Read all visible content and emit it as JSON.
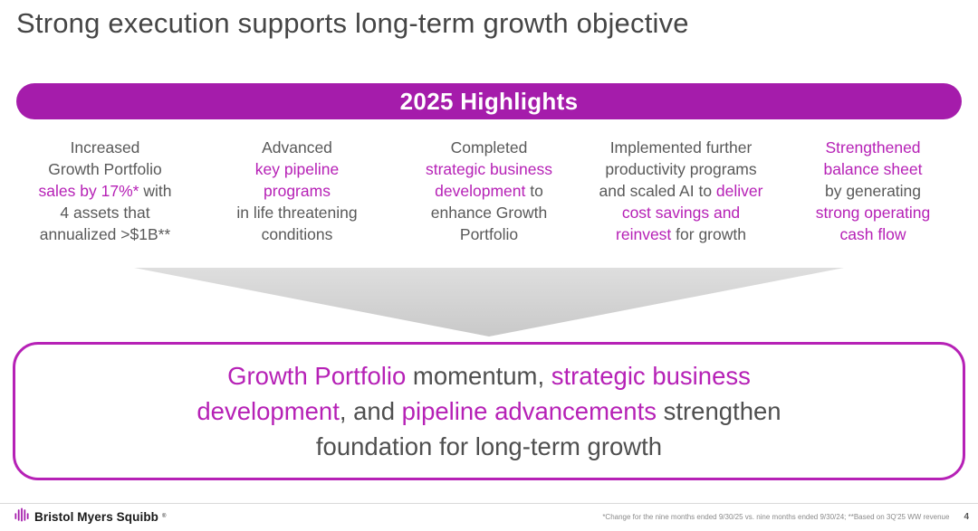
{
  "colors": {
    "accent": "#B621B6",
    "banner": "#A51CAB",
    "title_gray": "#454545",
    "body_gray": "#595959",
    "arrow_gray": "#D4D4D4"
  },
  "title": "Strong execution supports long-term growth objective",
  "banner": {
    "label": "2025 Highlights"
  },
  "highlights": [
    {
      "segments": [
        {
          "t": "Increased\nGrowth Portfolio\n"
        },
        {
          "t": "sales by 17%*",
          "accent": true
        },
        {
          "t": " with\n4 assets that\nannualized >$1B**"
        }
      ]
    },
    {
      "segments": [
        {
          "t": "Advanced\n"
        },
        {
          "t": "key pipeline\nprograms",
          "accent": true
        },
        {
          "t": "\nin life threatening\nconditions"
        }
      ]
    },
    {
      "segments": [
        {
          "t": "Completed\n"
        },
        {
          "t": "strategic business\ndevelopment",
          "accent": true
        },
        {
          "t": " to\nenhance Growth\nPortfolio"
        }
      ]
    },
    {
      "segments": [
        {
          "t": "Implemented further\nproductivity programs\nand scaled AI to "
        },
        {
          "t": "deliver\ncost savings and\nreinvest",
          "accent": true
        },
        {
          "t": " for growth"
        }
      ]
    },
    {
      "segments": [
        {
          "t": "Strengthened\nbalance sheet",
          "accent": true
        },
        {
          "t": "\nby generating\n"
        },
        {
          "t": "strong operating\ncash flow",
          "accent": true
        }
      ]
    }
  ],
  "summary": {
    "segments": [
      {
        "t": "Growth Portfolio",
        "accent": true
      },
      {
        "t": " momentum, "
      },
      {
        "t": "strategic business\ndevelopment",
        "accent": true
      },
      {
        "t": ", and "
      },
      {
        "t": "pipeline advancements",
        "accent": true
      },
      {
        "t": " strengthen\nfoundation for long-term growth"
      }
    ]
  },
  "footer": {
    "logo_text": "Bristol Myers Squibb",
    "registered_mark": "®",
    "footnote": "*Change for the nine months ended 9/30/25 vs. nine months ended 9/30/24; **Based on 3Q'25 WW revenue",
    "page_number": "4"
  }
}
